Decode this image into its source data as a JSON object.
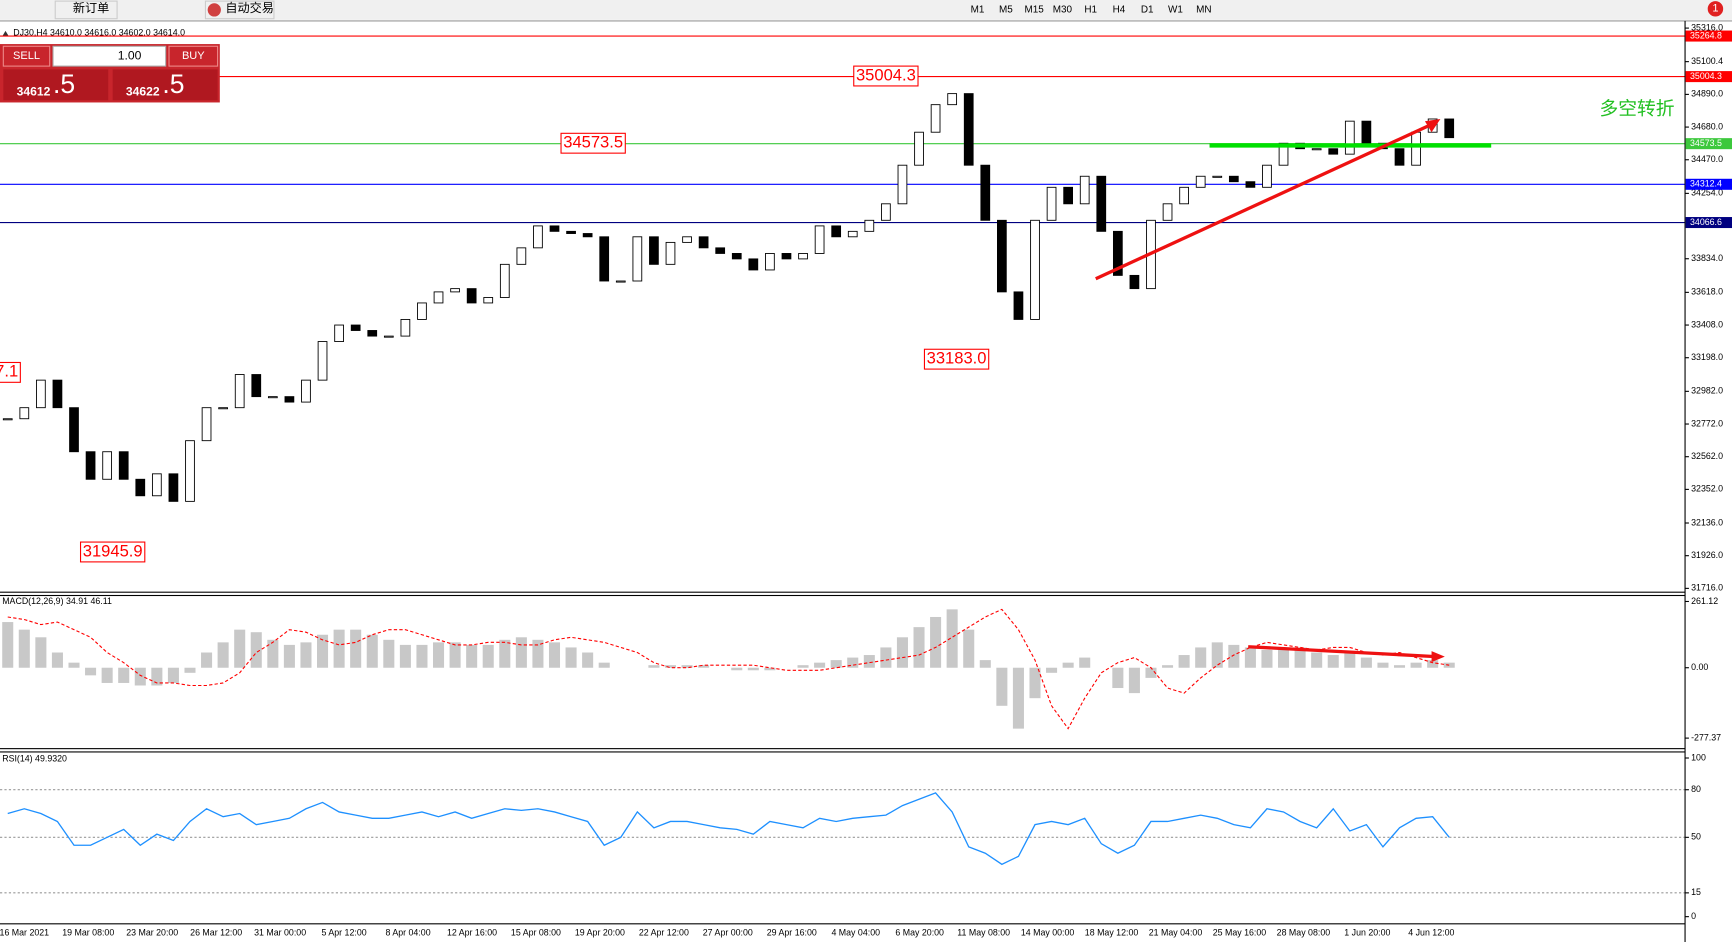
{
  "toolbar": {
    "new_order": "新订单",
    "auto_trading": "自动交易",
    "timeframes": [
      "M1",
      "M5",
      "M15",
      "M30",
      "H1",
      "H4",
      "D1",
      "W1",
      "MN"
    ],
    "badge": "1"
  },
  "trade_panel": {
    "sell": "SELL",
    "buy": "BUY",
    "lots": "1.00",
    "bid_main": "34612",
    "bid_frac": ".5",
    "ask_main": "34622",
    "ask_frac": ".5"
  },
  "chart_data": {
    "type": "candlestick",
    "symbol_info": "DJ30,H4  34610.0 34616.0 34602.0 34614.0",
    "x_labels": [
      "16 Mar 2021",
      "19 Mar 08:00",
      "23 Mar 20:00",
      "26 Mar 12:00",
      "31 Mar 00:00",
      "5 Apr 12:00",
      "8 Apr 04:00",
      "12 Apr 16:00",
      "15 Apr 08:00",
      "19 Apr 20:00",
      "22 Apr 12:00",
      "27 Apr 00:00",
      "29 Apr 16:00",
      "4 May 04:00",
      "6 May 20:00",
      "11 May 08:00",
      "14 May 00:00",
      "18 May 12:00",
      "21 May 04:00",
      "25 May 16:00",
      "28 May 08:00",
      "1 Jun 20:00",
      "4 Jun 12:00"
    ],
    "close": [
      32806,
      32877,
      33054,
      32877,
      32594,
      32417,
      32594,
      32417,
      32311,
      32452,
      32275,
      32665,
      32877,
      32877,
      33090,
      32948,
      32948,
      32913,
      33054,
      33302,
      33408,
      33373,
      33337,
      33337,
      33444,
      33550,
      33621,
      33642,
      33550,
      33585,
      33798,
      33904,
      34045,
      34010,
      33996,
      33975,
      33691,
      33691,
      33975,
      33798,
      33939,
      33975,
      33904,
      33868,
      33833,
      33762,
      33868,
      33833,
      33868,
      34045,
      33975,
      34010,
      34081,
      34187,
      34435,
      34647,
      34824,
      34895,
      34435,
      34081,
      33621,
      33444,
      34081,
      34293,
      34187,
      34364,
      34010,
      33727,
      33642,
      34081,
      34187,
      34293,
      34364,
      34364,
      34329,
      34293,
      34435,
      34576,
      34541,
      34541,
      34506,
      34718,
      34576,
      34541,
      34435,
      34647,
      34732,
      34612
    ],
    "color_up": "#ffffff",
    "color_down": "#000000",
    "ylim": [
      31695,
      35362
    ],
    "yticks": [
      {
        "value": 31716,
        "label": "31716.0"
      },
      {
        "value": 31926,
        "label": "31926.0"
      },
      {
        "value": 32136,
        "label": "32136.0"
      },
      {
        "value": 32352,
        "label": "32352.0"
      },
      {
        "value": 32562,
        "label": "32562.0"
      },
      {
        "value": 32772,
        "label": "32772.0"
      },
      {
        "value": 32982,
        "label": "32982.0"
      },
      {
        "value": 33198,
        "label": "33198.0"
      },
      {
        "value": 33408,
        "label": "33408.0"
      },
      {
        "value": 33618,
        "label": "33618.0"
      },
      {
        "value": 33834,
        "label": "33834.0"
      },
      {
        "value": 34254,
        "label": "34254.0"
      },
      {
        "value": 34470,
        "label": "34470.0"
      },
      {
        "value": 34680,
        "label": "34680.0"
      },
      {
        "value": 34890,
        "label": "34890.0"
      },
      35100.4,
      {
        "value": 35316,
        "label": "35316.0"
      }
    ],
    "hlines": [
      {
        "value": 35264.8,
        "color": "#ff0000"
      },
      {
        "value": 35004.3,
        "color": "#ff0000"
      },
      {
        "value": 34573.5,
        "color": "#3cc83c"
      },
      {
        "value": 34312.4,
        "color": "#0000ff"
      },
      {
        "value": 34066.6,
        "color": "#000080"
      }
    ],
    "annotations": [
      "35004.3",
      "34573.5",
      "33183.0",
      "31945.9",
      "7.1"
    ],
    "note": "多空转折",
    "macd": {
      "label": "MACD(12,26,9) 34.91 46.11",
      "ylim": [
        -316.7,
        282.5
      ],
      "yticks": [
        261.12,
        {
          "value": 0,
          "label": "0.00"
        },
        -277.37
      ],
      "histogram": [
        180,
        150,
        120,
        60,
        20,
        -30,
        -60,
        -60,
        -70,
        -70,
        -60,
        -20,
        60,
        100,
        150,
        140,
        110,
        90,
        100,
        130,
        150,
        150,
        130,
        110,
        90,
        90,
        100,
        100,
        90,
        90,
        110,
        120,
        110,
        100,
        80,
        60,
        20,
        0,
        0,
        10,
        10,
        10,
        10,
        0,
        -10,
        -10,
        -10,
        0,
        10,
        20,
        30,
        40,
        50,
        80,
        120,
        160,
        200,
        230,
        150,
        30,
        -150,
        -240,
        -120,
        -20,
        20,
        40,
        0,
        -80,
        -100,
        -40,
        10,
        50,
        80,
        100,
        90,
        80,
        70,
        80,
        80,
        60,
        50,
        60,
        40,
        20,
        10,
        20,
        30,
        20
      ],
      "signal": [
        200,
        190,
        170,
        180,
        150,
        120,
        60,
        20,
        -30,
        -60,
        -60,
        -70,
        -70,
        -60,
        -20,
        60,
        100,
        150,
        140,
        110,
        90,
        100,
        130,
        150,
        150,
        130,
        110,
        90,
        90,
        100,
        100,
        90,
        90,
        110,
        120,
        110,
        100,
        80,
        60,
        20,
        0,
        0,
        10,
        10,
        10,
        10,
        0,
        -10,
        -10,
        -10,
        0,
        10,
        20,
        30,
        40,
        50,
        80,
        120,
        160,
        200,
        230,
        150,
        30,
        -150,
        -240,
        -120,
        -20,
        20,
        40,
        0,
        -80,
        -100,
        -40,
        10,
        50,
        80,
        100,
        90,
        80,
        70,
        80,
        80,
        60,
        50,
        60,
        40,
        20,
        10
      ]
    },
    "rsi": {
      "label": "RSI(14) 49.9320",
      "ylim": [
        0,
        100
      ],
      "yticks": [
        100,
        80,
        50,
        15,
        0
      ],
      "dotted": [
        80,
        50,
        15
      ],
      "values": [
        65,
        68,
        65,
        60,
        45,
        45,
        50,
        55,
        45,
        52,
        48,
        60,
        68,
        63,
        65,
        58,
        60,
        62,
        68,
        72,
        66,
        64,
        62,
        62,
        64,
        66,
        63,
        66,
        62,
        65,
        68,
        67,
        68,
        66,
        63,
        60,
        45,
        50,
        66,
        56,
        60,
        60,
        58,
        56,
        55,
        52,
        60,
        58,
        56,
        62,
        60,
        62,
        63,
        64,
        70,
        74,
        78,
        66,
        44,
        40,
        33,
        38,
        58,
        60,
        58,
        62,
        46,
        40,
        45,
        60,
        60,
        62,
        64,
        62,
        58,
        56,
        68,
        66,
        60,
        56,
        68,
        54,
        58,
        44,
        56,
        62,
        63,
        50
      ]
    }
  }
}
